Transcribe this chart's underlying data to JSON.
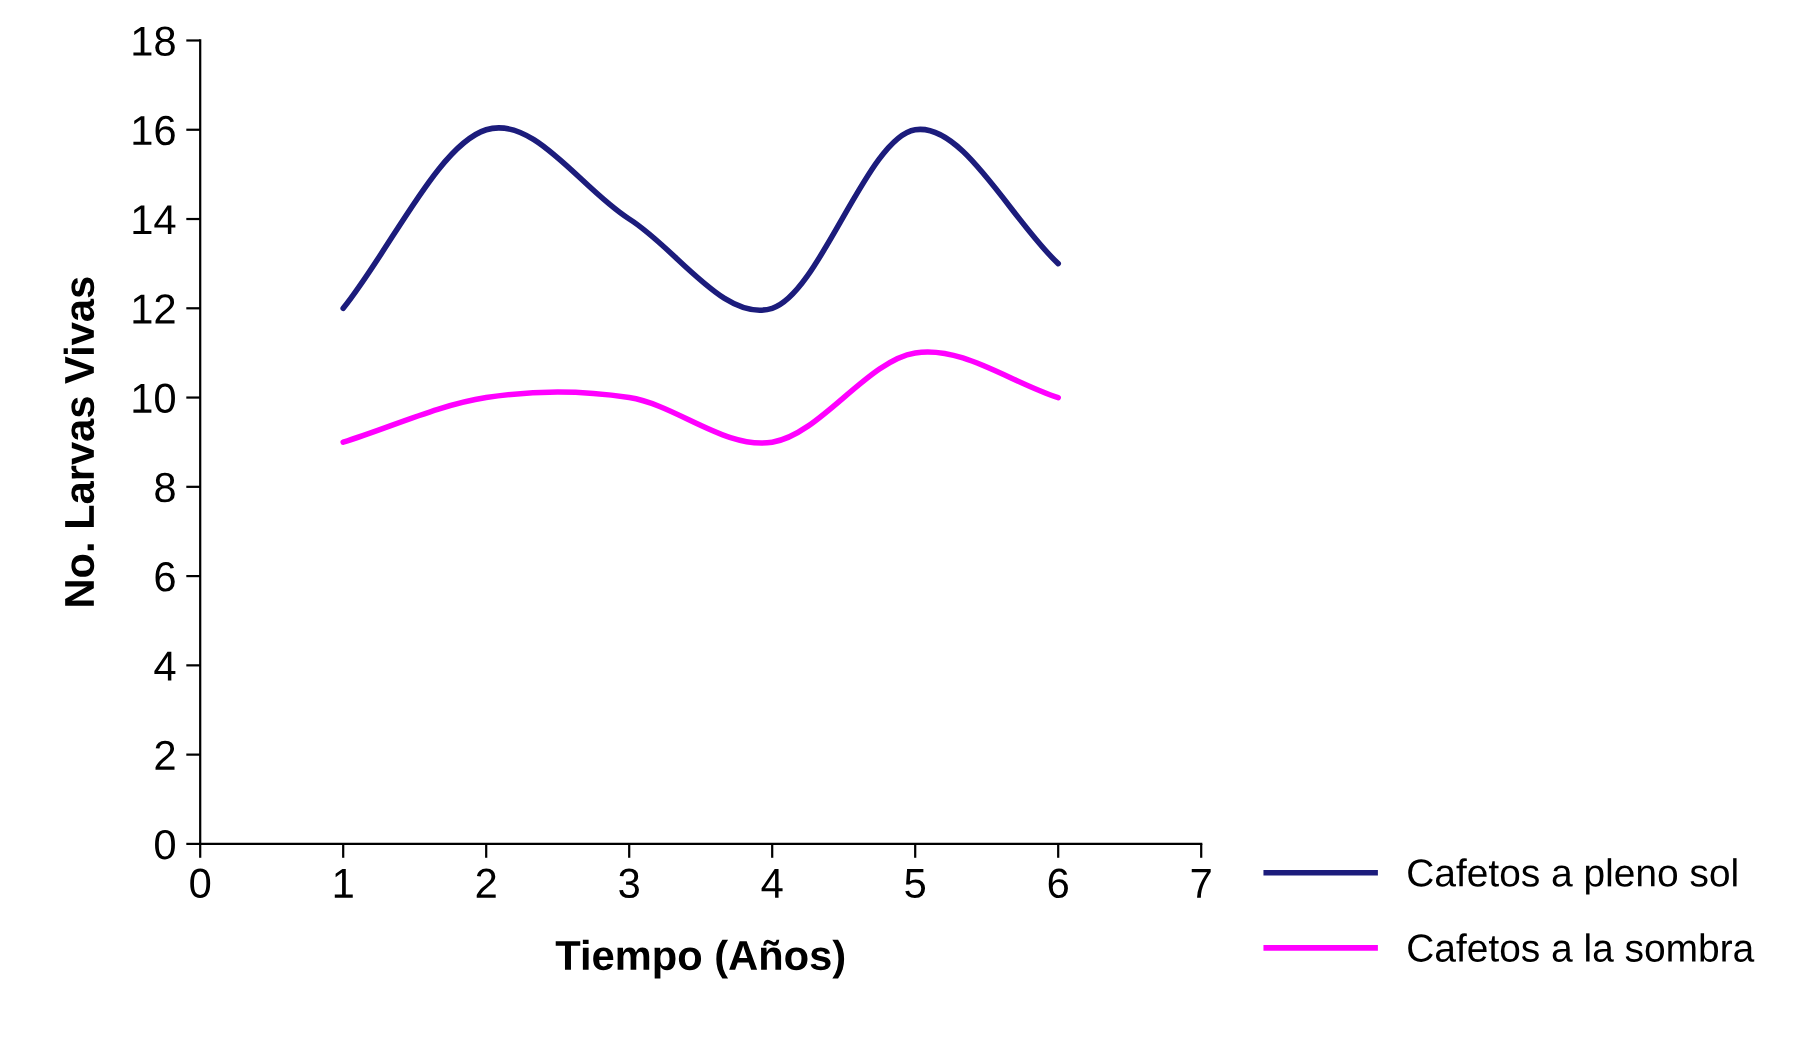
{
  "chart_data": {
    "type": "line",
    "xlabel": "Tiempo (Años)",
    "ylabel": "No. Larvas Vivas",
    "x": [
      1,
      2,
      3,
      4,
      5,
      6
    ],
    "series": [
      {
        "name": "Cafetos a pleno sol",
        "color": "#1c1c7c",
        "values": [
          12,
          16,
          14,
          12,
          16,
          13
        ]
      },
      {
        "name": "Cafetos a la sombra",
        "color": "#ff00ff",
        "values": [
          9,
          10,
          10,
          9,
          11,
          10
        ]
      }
    ],
    "xlim": [
      0,
      7
    ],
    "xticks": [
      0,
      1,
      2,
      3,
      4,
      5,
      6,
      7
    ],
    "ylim": [
      0,
      18
    ],
    "yticks": [
      0,
      2,
      4,
      6,
      8,
      10,
      12,
      14,
      16,
      18
    ],
    "grid": false,
    "legend": "bottom right",
    "marker": "none",
    "line_style": "solid"
  }
}
